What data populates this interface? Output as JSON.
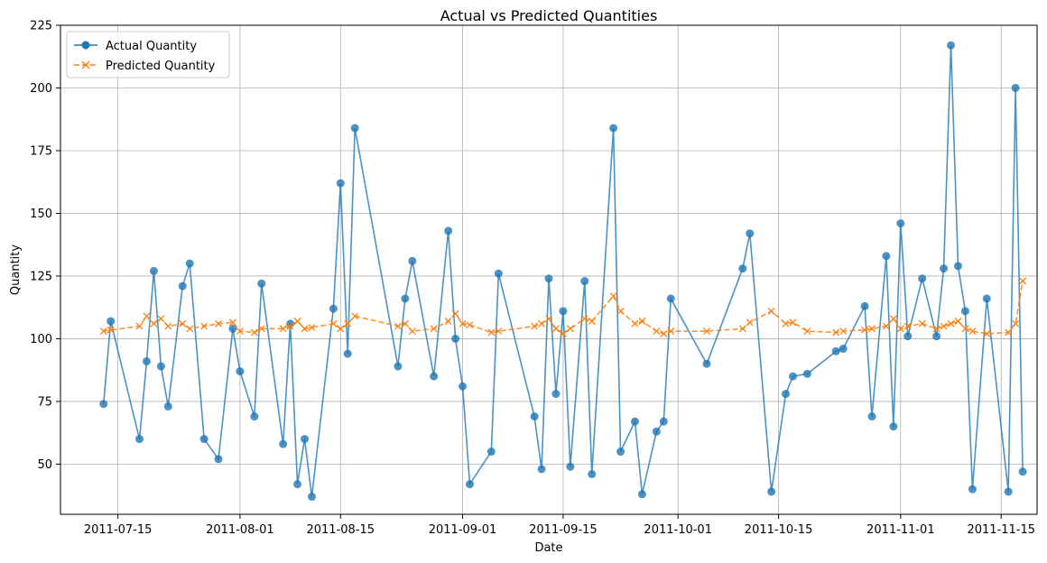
{
  "chart_data": {
    "type": "line",
    "title": "Actual vs Predicted Quantities",
    "xlabel": "Date",
    "ylabel": "Quantity",
    "x_range": [
      "2011-07-07",
      "2011-11-20"
    ],
    "ylim": [
      30,
      225
    ],
    "yticks": [
      50,
      75,
      100,
      125,
      150,
      175,
      200,
      225
    ],
    "xticks": [
      "2011-07-15",
      "2011-08-01",
      "2011-08-15",
      "2011-09-01",
      "2011-09-15",
      "2011-10-01",
      "2011-10-15",
      "2011-11-01",
      "2011-11-15"
    ],
    "grid": true,
    "legend_position": "top-left",
    "series": [
      {
        "name": "Actual Quantity",
        "color": "#1f77b4",
        "marker": "circle",
        "line_style": "solid",
        "x": [
          "2011-07-13",
          "2011-07-14",
          "2011-07-18",
          "2011-07-19",
          "2011-07-20",
          "2011-07-21",
          "2011-07-22",
          "2011-07-24",
          "2011-07-25",
          "2011-07-27",
          "2011-07-29",
          "2011-07-31",
          "2011-08-01",
          "2011-08-03",
          "2011-08-04",
          "2011-08-07",
          "2011-08-08",
          "2011-08-09",
          "2011-08-10",
          "2011-08-11",
          "2011-08-14",
          "2011-08-15",
          "2011-08-16",
          "2011-08-17",
          "2011-08-23",
          "2011-08-24",
          "2011-08-25",
          "2011-08-28",
          "2011-08-30",
          "2011-08-31",
          "2011-09-01",
          "2011-09-02",
          "2011-09-05",
          "2011-09-06",
          "2011-09-11",
          "2011-09-12",
          "2011-09-13",
          "2011-09-14",
          "2011-09-15",
          "2011-09-16",
          "2011-09-18",
          "2011-09-19",
          "2011-09-22",
          "2011-09-23",
          "2011-09-25",
          "2011-09-26",
          "2011-09-28",
          "2011-09-29",
          "2011-09-30",
          "2011-10-05",
          "2011-10-10",
          "2011-10-11",
          "2011-10-14",
          "2011-10-16",
          "2011-10-17",
          "2011-10-19",
          "2011-10-23",
          "2011-10-24",
          "2011-10-27",
          "2011-10-28",
          "2011-10-30",
          "2011-10-31",
          "2011-11-01",
          "2011-11-02",
          "2011-11-04",
          "2011-11-06",
          "2011-11-07",
          "2011-11-08",
          "2011-11-09",
          "2011-11-10",
          "2011-11-11",
          "2011-11-13",
          "2011-11-16",
          "2011-11-17",
          "2011-11-18"
        ],
        "values": [
          74,
          107,
          60,
          91,
          127,
          89,
          73,
          121,
          130,
          60,
          52,
          104,
          87,
          69,
          122,
          58,
          106,
          42,
          60,
          37,
          112,
          162,
          94,
          184,
          89,
          116,
          131,
          85,
          143,
          100,
          81,
          42,
          55,
          126,
          69,
          48,
          124,
          78,
          111,
          49,
          123,
          46,
          184,
          55,
          67,
          38,
          63,
          67,
          116,
          90,
          128,
          142,
          39,
          78,
          85,
          86,
          95,
          96,
          113,
          69,
          133,
          65,
          146,
          101,
          124,
          101,
          128,
          217,
          129,
          111,
          40,
          116,
          39,
          200,
          47
        ]
      },
      {
        "name": "Predicted Quantity",
        "color": "#ff7f0e",
        "marker": "x",
        "line_style": "dashed",
        "x": [
          "2011-07-13",
          "2011-07-14",
          "2011-07-18",
          "2011-07-19",
          "2011-07-20",
          "2011-07-21",
          "2011-07-22",
          "2011-07-24",
          "2011-07-25",
          "2011-07-27",
          "2011-07-29",
          "2011-07-31",
          "2011-08-01",
          "2011-08-03",
          "2011-08-04",
          "2011-08-07",
          "2011-08-08",
          "2011-08-09",
          "2011-08-10",
          "2011-08-11",
          "2011-08-14",
          "2011-08-15",
          "2011-08-16",
          "2011-08-17",
          "2011-08-23",
          "2011-08-24",
          "2011-08-25",
          "2011-08-28",
          "2011-08-30",
          "2011-08-31",
          "2011-09-01",
          "2011-09-02",
          "2011-09-05",
          "2011-09-06",
          "2011-09-11",
          "2011-09-12",
          "2011-09-13",
          "2011-09-14",
          "2011-09-15",
          "2011-09-16",
          "2011-09-18",
          "2011-09-19",
          "2011-09-22",
          "2011-09-23",
          "2011-09-25",
          "2011-09-26",
          "2011-09-28",
          "2011-09-29",
          "2011-09-30",
          "2011-10-05",
          "2011-10-10",
          "2011-10-11",
          "2011-10-14",
          "2011-10-16",
          "2011-10-17",
          "2011-10-19",
          "2011-10-23",
          "2011-10-24",
          "2011-10-27",
          "2011-10-28",
          "2011-10-30",
          "2011-10-31",
          "2011-11-01",
          "2011-11-02",
          "2011-11-04",
          "2011-11-06",
          "2011-11-07",
          "2011-11-08",
          "2011-11-09",
          "2011-11-10",
          "2011-11-11",
          "2011-11-13",
          "2011-11-16",
          "2011-11-17",
          "2011-11-18"
        ],
        "values": [
          103,
          103.5,
          105,
          109,
          106,
          108,
          105,
          106,
          104,
          105,
          106,
          106.5,
          103,
          102.5,
          104,
          104,
          105,
          107,
          104,
          104.5,
          106,
          104,
          106,
          109,
          105,
          106,
          103,
          104,
          107,
          110,
          106,
          105.5,
          102.5,
          103,
          105,
          106,
          108,
          104,
          102,
          104,
          108,
          107,
          117,
          111,
          106,
          107,
          103,
          102,
          103,
          103,
          104,
          106.5,
          111,
          106,
          106.5,
          103,
          102.5,
          103,
          103.5,
          104,
          105,
          108,
          104,
          105,
          106,
          104,
          105,
          106,
          107,
          104,
          103,
          102,
          102.5,
          106,
          123
        ]
      }
    ]
  }
}
